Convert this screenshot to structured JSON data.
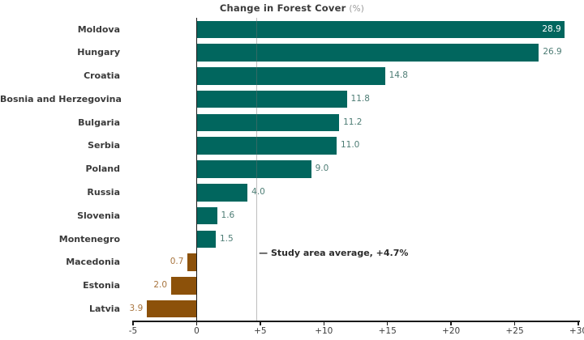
{
  "title": {
    "main": "Change in Forest Cover",
    "unit": "(%)"
  },
  "annotation": {
    "label": "— Study area average, +4.7%",
    "value": 4.7
  },
  "chart_data": {
    "type": "bar",
    "orientation": "horizontal",
    "title": "Change in Forest Cover (%)",
    "categories": [
      "Moldova",
      "Hungary",
      "Croatia",
      "Bosnia and Herzegovina",
      "Bulgaria",
      "Serbia",
      "Poland",
      "Russia",
      "Slovenia",
      "Montenegro",
      "Macedonia",
      "Estonia",
      "Latvia"
    ],
    "values": [
      28.9,
      26.9,
      14.8,
      11.8,
      11.2,
      11.0,
      9.0,
      4.0,
      1.6,
      1.5,
      -0.7,
      -2.0,
      -3.9
    ],
    "value_labels": [
      "28.9",
      "26.9",
      "14.8",
      "11.8",
      "11.2",
      "11.0",
      "9.0",
      "4.0",
      "1.6",
      "1.5",
      "0.7",
      "2.0",
      "3.9"
    ],
    "xlim": [
      -5,
      30
    ],
    "xticks": [
      -5,
      0,
      5,
      10,
      15,
      20,
      25,
      30
    ],
    "xtick_labels": [
      "-5",
      "0",
      "+5",
      "+10",
      "+15",
      "+20",
      "+25",
      "+30"
    ],
    "average": 4.7,
    "grid": "off",
    "legend": "none",
    "colors": {
      "bar_positive": "#01665E",
      "bar_negative": "#8C510A",
      "label_positive": "#4E7D75",
      "label_negative": "#A8743E",
      "label_inside": "#FFFFFF",
      "axis": "#1a1a1a",
      "text": "#3A3A3A",
      "title_unit": "#999999",
      "avg_line": "#6E6E6E"
    }
  }
}
